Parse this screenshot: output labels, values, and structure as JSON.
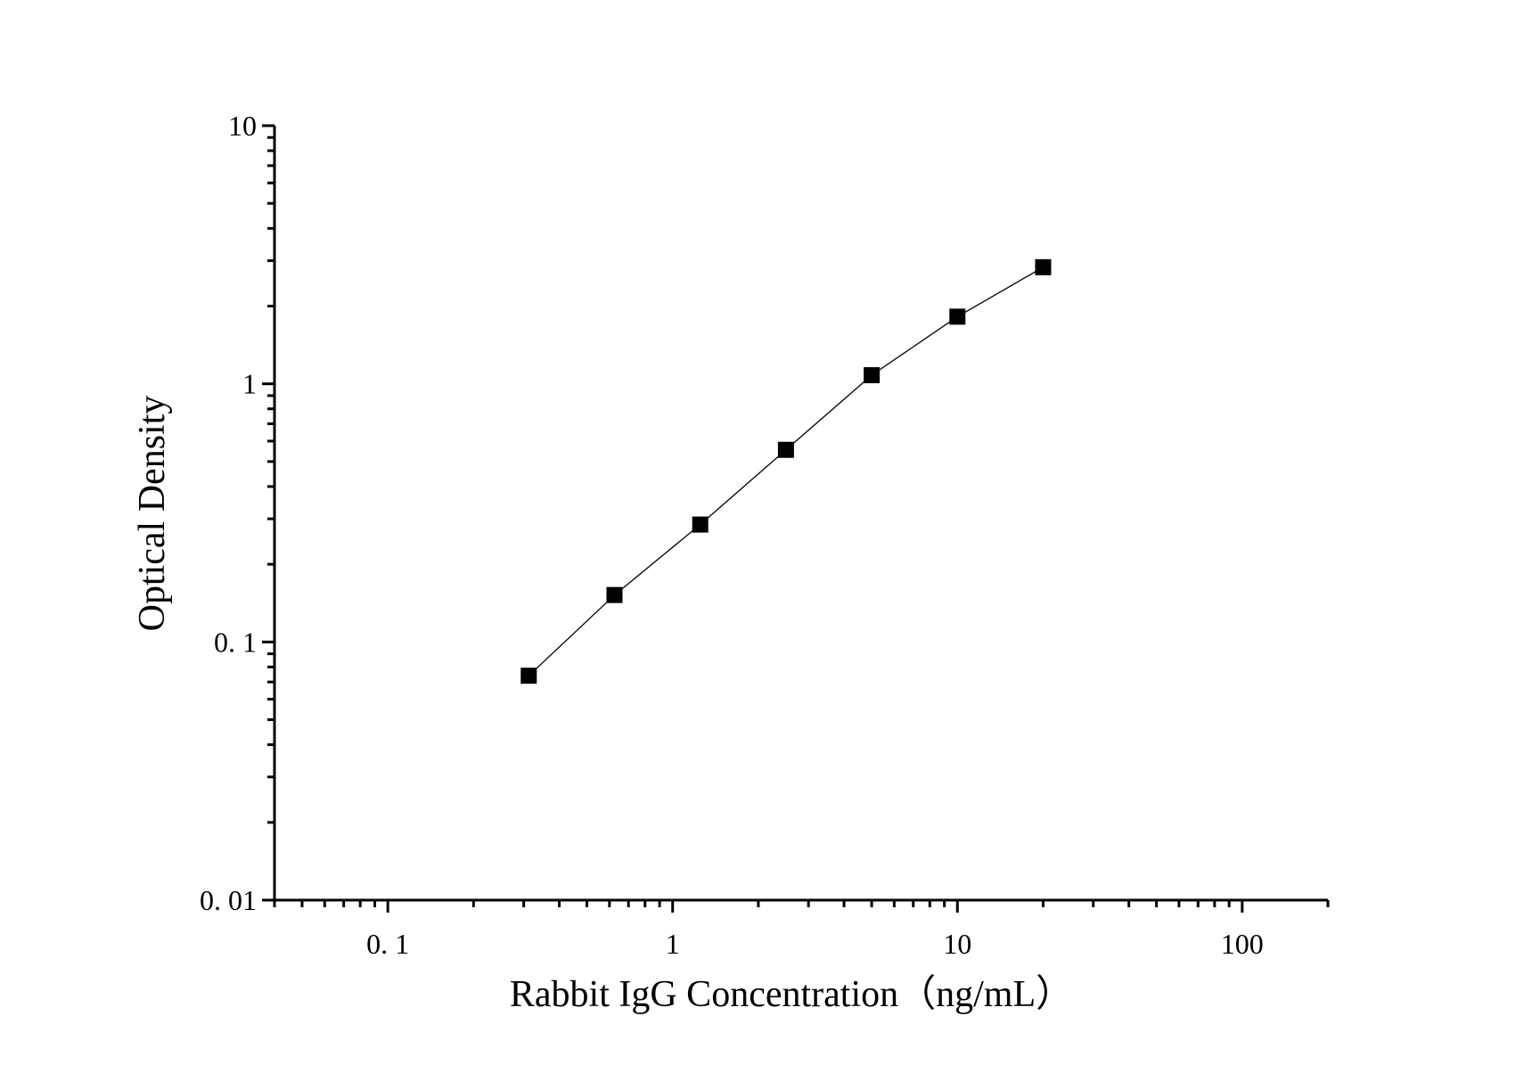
{
  "chart_data": {
    "type": "line",
    "title": "",
    "xlabel": "Rabbit IgG Concentration（ng/mL）",
    "ylabel": "Optical Density",
    "x_scale": "log",
    "y_scale": "log",
    "xlim": [
      0.04,
      200
    ],
    "ylim": [
      0.01,
      10
    ],
    "x_ticks": [
      0.1,
      1,
      10,
      100
    ],
    "x_tick_labels": [
      "0. 1",
      "1",
      "10",
      "100"
    ],
    "y_ticks": [
      0.01,
      0.1,
      1,
      10
    ],
    "y_tick_labels": [
      "0. 01",
      "0. 1",
      "1",
      "10"
    ],
    "grid": false,
    "legend": "none",
    "marker": "square",
    "series": [
      {
        "x": [
          0.3125,
          0.625,
          1.25,
          2.5,
          5,
          10,
          20
        ],
        "y": [
          0.074,
          0.152,
          0.285,
          0.555,
          1.08,
          1.82,
          2.83
        ],
        "color": "#000000"
      }
    ]
  }
}
